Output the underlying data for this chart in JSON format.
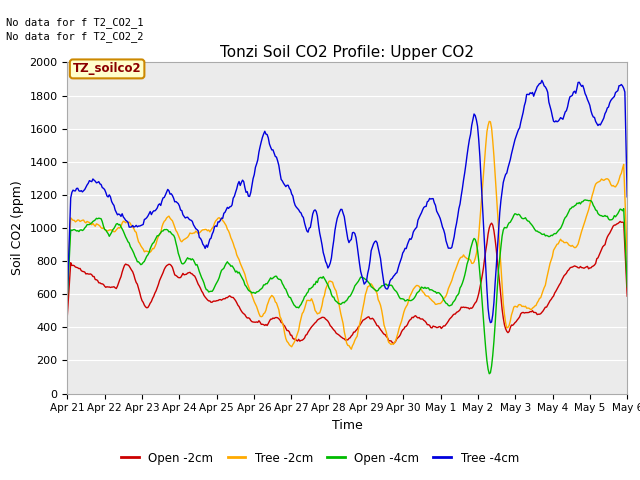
{
  "title": "Tonzi Soil CO2 Profile: Upper CO2",
  "xlabel": "Time",
  "ylabel": "Soil CO2 (ppm)",
  "ylim": [
    0,
    2000
  ],
  "yticks": [
    0,
    200,
    400,
    600,
    800,
    1000,
    1200,
    1400,
    1600,
    1800,
    2000
  ],
  "text_annotations": [
    "No data for f T2_CO2_1",
    "No data for f T2_CO2_2"
  ],
  "legend_label": "TZ_soilco2",
  "fig_bg_color": "#ffffff",
  "plot_bg_color": "#ebebeb",
  "series": {
    "open_2cm": {
      "color": "#cc0000",
      "label": "Open -2cm"
    },
    "tree_2cm": {
      "color": "#ffaa00",
      "label": "Tree -2cm"
    },
    "open_4cm": {
      "color": "#00bb00",
      "label": "Open -4cm"
    },
    "tree_4cm": {
      "color": "#0000dd",
      "label": "Tree -4cm"
    }
  },
  "xtick_labels": [
    "Apr 21",
    "Apr 22",
    "Apr 23",
    "Apr 24",
    "Apr 25",
    "Apr 26",
    "Apr 27",
    "Apr 28",
    "Apr 29",
    "Apr 30",
    "May 1",
    "May 2",
    "May 3",
    "May 4",
    "May 5",
    "May 6"
  ],
  "n_points": 480
}
